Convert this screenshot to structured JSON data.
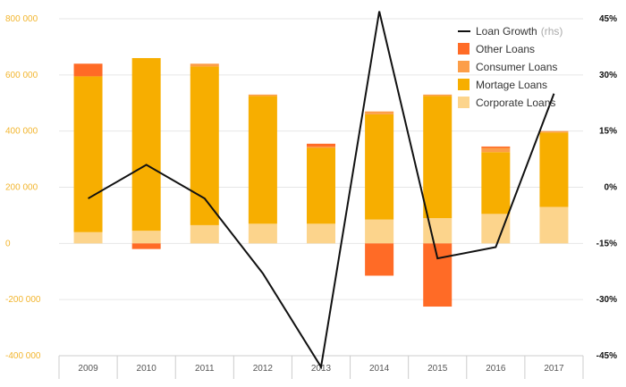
{
  "chart_data": {
    "type": "bar",
    "categories": [
      "2009",
      "2010",
      "2011",
      "2012",
      "2013",
      "2014",
      "2015",
      "2016",
      "2017"
    ],
    "series": [
      {
        "name": "Corporate Loans",
        "values": [
          40000,
          45000,
          65000,
          70000,
          70000,
          85000,
          90000,
          105000,
          130000
        ],
        "color": "#fcd48c",
        "axis": "left"
      },
      {
        "name": "Mortage Loans",
        "values": [
          555000,
          615000,
          565000,
          455000,
          270000,
          375000,
          435000,
          220000,
          265000
        ],
        "color": "#f7ae00",
        "axis": "left"
      },
      {
        "name": "Consumer Loans",
        "values": [
          0,
          0,
          10000,
          5000,
          5000,
          10000,
          5000,
          15000,
          5000
        ],
        "color": "#fc9e49",
        "axis": "left"
      },
      {
        "name": "Other Loans",
        "values": [
          45000,
          -20000,
          0,
          0,
          10000,
          -115000,
          -225000,
          5000,
          0
        ],
        "color": "#ff6b26",
        "axis": "left"
      },
      {
        "name": "Loan Growth",
        "rhs_label": "(rhs)",
        "type": "line",
        "values": [
          -3,
          6,
          -3,
          -23,
          -48,
          47,
          -19,
          -16,
          25
        ],
        "color": "#111111",
        "axis": "right"
      }
    ],
    "legend_order": [
      "Loan Growth",
      "Other Loans",
      "Consumer Loans",
      "Mortage Loans",
      "Corporate Loans"
    ],
    "y_left": {
      "min": -400000,
      "max": 800000,
      "ticks": [
        -400000,
        -200000,
        0,
        200000,
        400000,
        600000,
        800000
      ],
      "tick_labels": [
        "-400 000",
        "-200 000",
        "0",
        "200 000",
        "400 000",
        "600 000",
        "800 000"
      ]
    },
    "y_right": {
      "min": -45,
      "max": 45,
      "ticks": [
        -45,
        -30,
        -15,
        0,
        15,
        30,
        45
      ],
      "tick_labels": [
        "-45%",
        "-30%",
        "-15%",
        "0%",
        "15%",
        "30%",
        "45%"
      ]
    },
    "legend_position": "top-right",
    "grid": true,
    "title": "",
    "xlabel": "",
    "ylabel": ""
  },
  "colors": {
    "grid": "#e6e6e6",
    "axis": "#cccccc",
    "left_ticks": "#f2b52e"
  }
}
